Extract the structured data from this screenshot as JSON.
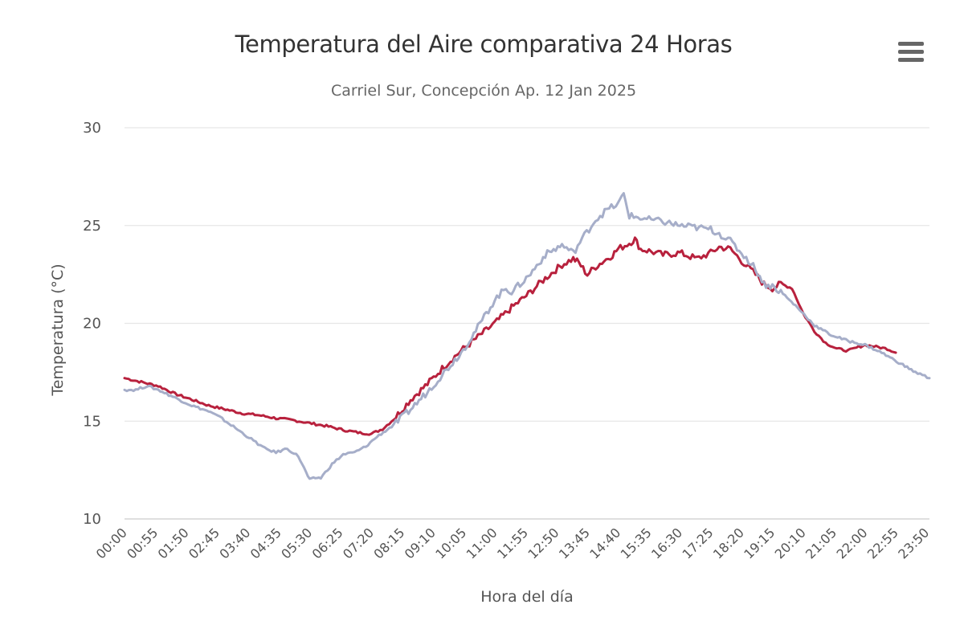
{
  "chart_data": {
    "type": "line",
    "title": "Temperatura del Aire comparativa 24 Horas",
    "subtitle": "Carriel Sur, Concepción Ap. 12 Jan 2025",
    "xlabel": "Hora del día",
    "ylabel": "Temperatura (°C)",
    "ylim": [
      10,
      30
    ],
    "y_ticks": [
      10,
      15,
      20,
      25,
      30
    ],
    "x_range": [
      "00:00",
      "23:55"
    ],
    "x_ticks": [
      "00:00",
      "00:55",
      "01:50",
      "02:45",
      "03:40",
      "04:35",
      "05:30",
      "06:25",
      "07:20",
      "08:15",
      "09:10",
      "10:05",
      "11:00",
      "11:55",
      "12:50",
      "13:45",
      "14:40",
      "15:35",
      "16:30",
      "17:25",
      "18:20",
      "19:15",
      "20:10",
      "21:05",
      "22:00",
      "22:55",
      "23:50"
    ],
    "grid": true,
    "legend": "none",
    "series": [
      {
        "color": "#b8213d",
        "x": [
          "00:00",
          "00:30",
          "01:00",
          "01:30",
          "02:00",
          "02:30",
          "03:00",
          "03:30",
          "04:00",
          "04:30",
          "05:00",
          "05:30",
          "06:00",
          "06:30",
          "07:00",
          "07:20",
          "07:40",
          "08:00",
          "08:15",
          "08:30",
          "09:00",
          "09:30",
          "10:00",
          "10:30",
          "11:00",
          "11:30",
          "12:00",
          "12:30",
          "13:00",
          "13:20",
          "13:30",
          "13:45",
          "14:00",
          "14:30",
          "14:40",
          "15:00",
          "15:10",
          "15:20",
          "15:35",
          "16:00",
          "16:30",
          "17:00",
          "17:25",
          "17:40",
          "18:00",
          "18:20",
          "18:45",
          "19:00",
          "19:15",
          "19:30",
          "19:50",
          "20:10",
          "20:30",
          "20:50",
          "21:10",
          "21:30",
          "22:00",
          "22:20",
          "22:40",
          "22:55"
        ],
        "values": [
          17.2,
          17.0,
          16.8,
          16.4,
          16.1,
          15.8,
          15.6,
          15.4,
          15.3,
          15.15,
          15.05,
          14.9,
          14.75,
          14.55,
          14.4,
          14.35,
          14.6,
          15.1,
          15.6,
          16.1,
          16.9,
          17.8,
          18.6,
          19.3,
          20.0,
          20.8,
          21.5,
          22.3,
          23.0,
          23.3,
          23.1,
          22.5,
          22.9,
          23.5,
          23.8,
          24.1,
          24.3,
          23.8,
          23.7,
          23.5,
          23.6,
          23.3,
          23.6,
          23.9,
          23.8,
          23.2,
          22.5,
          22.0,
          21.8,
          22.0,
          21.8,
          20.5,
          19.6,
          19.0,
          18.7,
          18.6,
          18.9,
          18.8,
          18.7,
          18.5
        ]
      },
      {
        "color": "#a6aec9",
        "x": [
          "00:00",
          "00:20",
          "00:40",
          "01:00",
          "01:30",
          "02:00",
          "02:30",
          "02:50",
          "03:10",
          "03:30",
          "03:50",
          "04:10",
          "04:30",
          "04:50",
          "05:10",
          "05:20",
          "05:30",
          "05:40",
          "05:50",
          "06:10",
          "06:30",
          "06:50",
          "07:10",
          "07:30",
          "08:00",
          "08:30",
          "09:00",
          "09:30",
          "10:00",
          "10:30",
          "11:00",
          "11:20",
          "11:30",
          "12:00",
          "12:30",
          "13:00",
          "13:20",
          "13:40",
          "14:00",
          "14:20",
          "14:40",
          "14:50",
          "15:00",
          "15:35",
          "16:00",
          "16:30",
          "17:00",
          "17:25",
          "17:40",
          "18:00",
          "18:20",
          "18:45",
          "19:00",
          "19:15",
          "19:30",
          "20:00",
          "20:30",
          "21:00",
          "21:30",
          "22:00",
          "22:30",
          "23:00",
          "23:30",
          "23:55"
        ],
        "values": [
          16.6,
          16.6,
          16.8,
          16.6,
          16.2,
          15.8,
          15.5,
          15.2,
          14.8,
          14.4,
          14.0,
          13.6,
          13.4,
          13.6,
          13.2,
          12.6,
          12.0,
          12.1,
          12.1,
          12.8,
          13.3,
          13.4,
          13.7,
          14.2,
          14.8,
          15.6,
          16.5,
          17.5,
          18.5,
          19.8,
          21.2,
          21.8,
          21.6,
          22.4,
          23.5,
          24.0,
          23.6,
          24.5,
          25.3,
          25.8,
          26.1,
          26.6,
          25.5,
          25.3,
          25.2,
          25.0,
          24.9,
          24.8,
          24.6,
          24.2,
          23.6,
          22.8,
          22.0,
          21.9,
          21.6,
          20.8,
          19.9,
          19.4,
          19.1,
          18.9,
          18.5,
          18.0,
          17.5,
          17.2
        ]
      }
    ]
  }
}
